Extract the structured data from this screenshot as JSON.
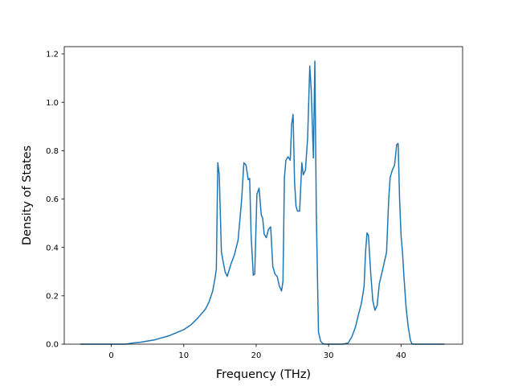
{
  "chart_data": {
    "type": "line",
    "title": "",
    "xlabel": "Frequency (THz)",
    "ylabel": "Density of States",
    "xlim": [
      -6.5,
      48.5
    ],
    "ylim": [
      0,
      1.23
    ],
    "xticks": [
      0,
      10,
      20,
      30,
      40
    ],
    "yticks": [
      0.0,
      0.2,
      0.4,
      0.6,
      0.8,
      1.0,
      1.2
    ],
    "xtick_labels": [
      "0",
      "10",
      "20",
      "30",
      "40"
    ],
    "ytick_labels": [
      "0.0",
      "0.2",
      "0.4",
      "0.6",
      "0.8",
      "1.0",
      "1.2"
    ],
    "grid": false,
    "legend": "none",
    "series": [
      {
        "color": "#1f77b4",
        "x": [
          -4.3,
          0,
          2,
          3,
          4,
          6,
          8,
          10,
          11,
          12,
          13,
          13.5,
          14,
          14.3,
          14.5,
          14.7,
          14.9,
          15.2,
          15.7,
          16,
          16.5,
          17,
          17.5,
          18,
          18.3,
          18.6,
          18.9,
          19.1,
          19.3,
          19.6,
          19.8,
          20.1,
          20.4,
          20.7,
          20.9,
          21.1,
          21.4,
          21.7,
          22,
          22.3,
          22.6,
          22.9,
          23.2,
          23.5,
          23.7,
          23.9,
          24.1,
          24.4,
          24.7,
          24.9,
          25.1,
          25.3,
          25.5,
          25.7,
          26,
          26.3,
          26.5,
          26.8,
          27.1,
          27.4,
          27.6,
          27.9,
          28.1,
          28.3,
          28.6,
          28.9,
          29.2,
          29.5,
          29.8,
          30.2,
          31,
          32,
          32.7,
          33.2,
          33.7,
          34.1,
          34.5,
          34.7,
          34.9,
          35.1,
          35.3,
          35.5,
          35.8,
          36.1,
          36.4,
          36.7,
          37,
          37.4,
          37.7,
          38,
          38.3,
          38.5,
          38.8,
          39.1,
          39.4,
          39.6,
          39.8,
          40,
          40.2,
          40.4,
          40.7,
          41,
          41.3,
          41.5,
          41.7,
          42,
          43,
          44,
          46
        ],
        "y": [
          0,
          0,
          0,
          0.005,
          0.008,
          0.018,
          0.035,
          0.06,
          0.08,
          0.11,
          0.145,
          0.175,
          0.22,
          0.27,
          0.31,
          0.75,
          0.7,
          0.38,
          0.3,
          0.28,
          0.33,
          0.37,
          0.43,
          0.6,
          0.75,
          0.74,
          0.68,
          0.685,
          0.45,
          0.285,
          0.29,
          0.62,
          0.645,
          0.535,
          0.52,
          0.455,
          0.44,
          0.475,
          0.485,
          0.32,
          0.29,
          0.28,
          0.24,
          0.22,
          0.26,
          0.69,
          0.76,
          0.775,
          0.76,
          0.91,
          0.95,
          0.67,
          0.57,
          0.55,
          0.55,
          0.75,
          0.7,
          0.72,
          0.85,
          1.15,
          1.05,
          0.77,
          1.17,
          0.55,
          0.05,
          0.012,
          0.002,
          0,
          0,
          0,
          0,
          0,
          0.005,
          0.03,
          0.07,
          0.12,
          0.165,
          0.2,
          0.24,
          0.38,
          0.46,
          0.45,
          0.3,
          0.18,
          0.14,
          0.16,
          0.25,
          0.3,
          0.34,
          0.38,
          0.6,
          0.69,
          0.72,
          0.74,
          0.825,
          0.83,
          0.6,
          0.45,
          0.38,
          0.28,
          0.15,
          0.07,
          0.015,
          0.002,
          0,
          0,
          0,
          0,
          0
        ]
      }
    ]
  }
}
